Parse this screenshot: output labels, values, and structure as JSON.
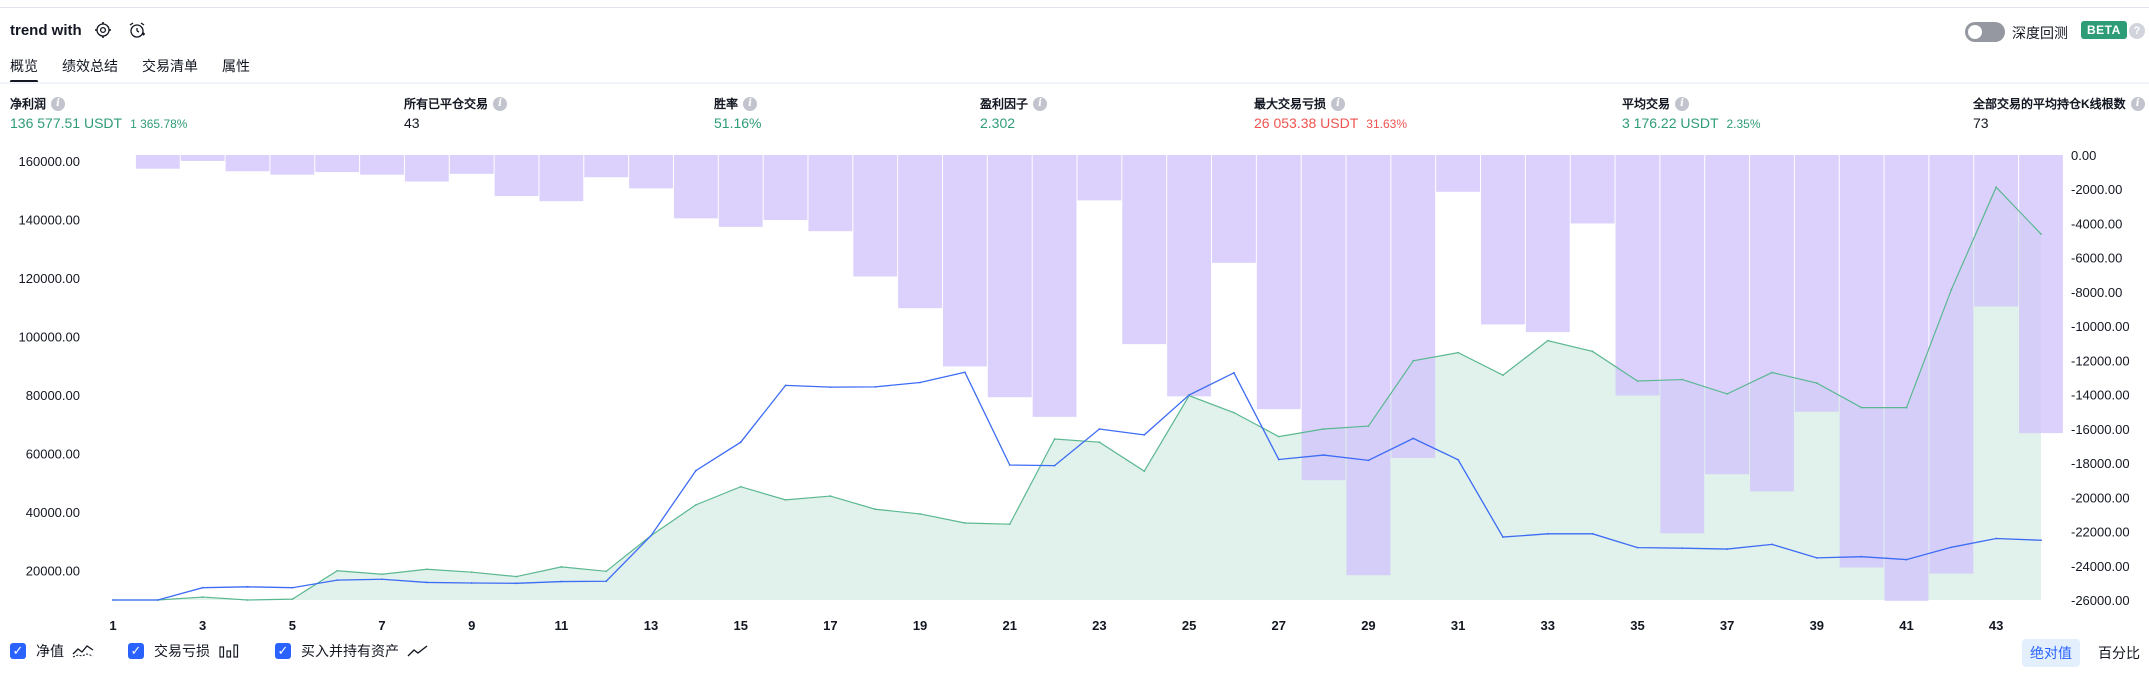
{
  "header": {
    "title": "trend with",
    "deep_backtest_label": "深度回测",
    "beta_label": "BETA",
    "help_label": "?"
  },
  "tabs": [
    {
      "label": "概览",
      "active": true
    },
    {
      "label": "绩效总结",
      "active": false
    },
    {
      "label": "交易清单",
      "active": false
    },
    {
      "label": "属性",
      "active": false
    }
  ],
  "metrics": [
    {
      "label": "净利润",
      "value": "136 577.51 USDT",
      "pct": "1 365.78%",
      "color": "green"
    },
    {
      "label": "所有已平仓交易",
      "value": "43",
      "pct": "",
      "color": "dark"
    },
    {
      "label": "胜率",
      "value": "51.16%",
      "pct": "",
      "color": "green"
    },
    {
      "label": "盈利因子",
      "value": "2.302",
      "pct": "",
      "color": "green"
    },
    {
      "label": "最大交易亏损",
      "value": "26 053.38 USDT",
      "pct": "31.63%",
      "color": "red"
    },
    {
      "label": "平均交易",
      "value": "3 176.22 USDT",
      "pct": "2.35%",
      "color": "green"
    },
    {
      "label": "全部交易的平均持仓K线根数",
      "value": "73",
      "pct": "",
      "color": "dark"
    }
  ],
  "legend": {
    "equity_label": "净值",
    "drawdown_label": "交易亏损",
    "buyhold_label": "买入并持有资产",
    "abs_label": "绝对值",
    "pct_label": "百分比"
  },
  "chart_data": {
    "type": "line",
    "x": [
      1,
      2,
      3,
      4,
      5,
      6,
      7,
      8,
      9,
      10,
      11,
      12,
      13,
      14,
      15,
      16,
      17,
      18,
      19,
      20,
      21,
      22,
      23,
      24,
      25,
      26,
      27,
      28,
      29,
      30,
      31,
      32,
      33,
      34,
      35,
      36,
      37,
      38,
      39,
      40,
      41,
      42,
      43,
      44
    ],
    "x_ticks": [
      "1",
      "3",
      "5",
      "7",
      "9",
      "11",
      "13",
      "15",
      "17",
      "19",
      "21",
      "23",
      "25",
      "27",
      "29",
      "31",
      "33",
      "35",
      "37",
      "39",
      "41",
      "43"
    ],
    "y_left_ticks": [
      "160000.00",
      "140000.00",
      "120000.00",
      "100000.00",
      "80000.00",
      "60000.00",
      "40000.00",
      "20000.00"
    ],
    "y_right_ticks": [
      "0.00",
      "-2000.00",
      "-4000.00",
      "-6000.00",
      "-8000.00",
      "-10000.00",
      "-12000.00",
      "-14000.00",
      "-16000.00",
      "-18000.00",
      "-20000.00",
      "-22000.00",
      "-24000.00",
      "-26000.00"
    ],
    "ylim_left": [
      10000,
      162000
    ],
    "ylim_right": [
      -26000,
      0
    ],
    "series": [
      {
        "name": "净值",
        "kind": "area",
        "axis": "left",
        "color": "#5ab891",
        "values": [
          10000,
          10000,
          11000,
          10000,
          10300,
          20000,
          18800,
          20500,
          19500,
          18000,
          21300,
          19800,
          32000,
          42500,
          48700,
          44200,
          45500,
          41000,
          39400,
          36300,
          35900,
          65000,
          63900,
          54000,
          79800,
          74000,
          65800,
          68400,
          69400,
          91700,
          94500,
          86800,
          98600,
          94900,
          84800,
          85300,
          80400,
          87700,
          84100,
          75700,
          75700,
          116000,
          151000,
          135000
        ]
      },
      {
        "name": "买入并持有资产",
        "kind": "line",
        "axis": "left",
        "color": "#3d6cf5",
        "values": [
          10000,
          10000,
          14200,
          14500,
          14200,
          16800,
          17100,
          16000,
          15800,
          15700,
          16300,
          16400,
          32000,
          54200,
          63900,
          83300,
          82700,
          82800,
          84300,
          87800,
          56100,
          55900,
          68400,
          66400,
          80000,
          87600,
          58000,
          59500,
          57700,
          65200,
          57900,
          31500,
          32600,
          32600,
          27900,
          27700,
          27400,
          29000,
          24400,
          24800,
          23800,
          28000,
          31000,
          30400
        ]
      },
      {
        "name": "交易亏损",
        "kind": "bar",
        "axis": "right",
        "color": "#d1c4fb",
        "values": [
          0,
          -800,
          -350,
          -950,
          -1150,
          -1000,
          -1150,
          -1550,
          -1100,
          -2400,
          -2700,
          -1300,
          -1950,
          -3700,
          -4200,
          -3800,
          -4450,
          -7100,
          -8950,
          -12350,
          -14150,
          -15300,
          -2650,
          -11050,
          -14100,
          -6300,
          -14850,
          -19000,
          -24550,
          -17700,
          -2150,
          -9900,
          -10350,
          -4000,
          -14050,
          -22100,
          -18650,
          -19650,
          -15000,
          -24100,
          -26050,
          -24450,
          -8850,
          -16250
        ]
      }
    ],
    "grid": false,
    "legend_placement": "bottom-left"
  }
}
